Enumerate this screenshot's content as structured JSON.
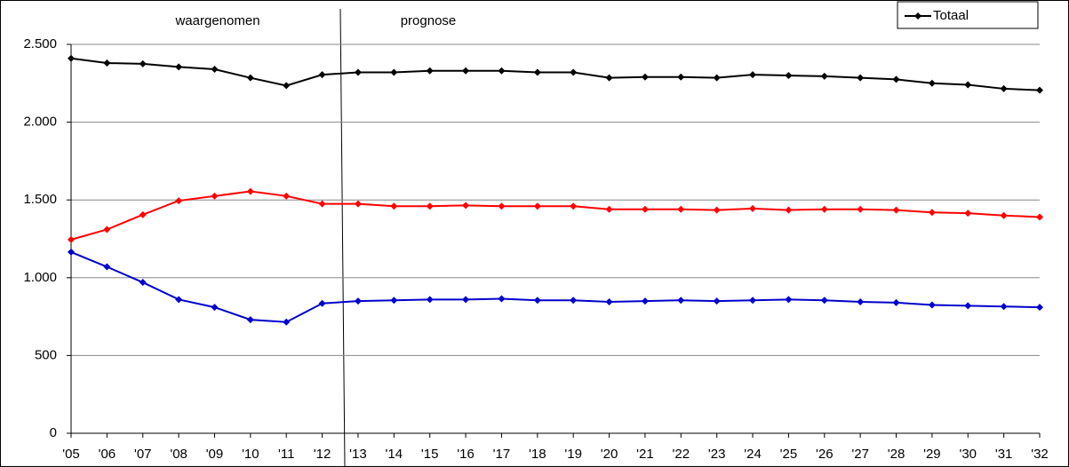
{
  "chart_data": {
    "type": "line",
    "annotations": [
      "waargenomen",
      "prognose"
    ],
    "categories": [
      "'05",
      "'06",
      "'07",
      "'08",
      "'09",
      "'10",
      "'11",
      "'12",
      "'13",
      "'14",
      "'15",
      "'16",
      "'17",
      "'18",
      "'19",
      "'20",
      "'21",
      "'22",
      "'23",
      "'24",
      "'25",
      "'26",
      "'27",
      "'28",
      "'29",
      "'30",
      "'31",
      "'32"
    ],
    "series": [
      {
        "name": "Totaal",
        "color": "#000000",
        "values": [
          2410,
          2380,
          2375,
          2355,
          2340,
          2285,
          2235,
          2305,
          2320,
          2320,
          2330,
          2330,
          2330,
          2320,
          2320,
          2285,
          2290,
          2290,
          2285,
          2305,
          2300,
          2295,
          2285,
          2275,
          2250,
          2240,
          2215,
          2205
        ]
      },
      {
        "color": "#ff0000",
        "values": [
          1245,
          1310,
          1405,
          1495,
          1525,
          1555,
          1525,
          1475,
          1475,
          1460,
          1460,
          1465,
          1460,
          1460,
          1460,
          1440,
          1440,
          1440,
          1435,
          1445,
          1435,
          1440,
          1440,
          1435,
          1420,
          1415,
          1400,
          1390
        ]
      },
      {
        "color": "#0000cc",
        "values": [
          1165,
          1070,
          970,
          860,
          810,
          730,
          715,
          835,
          850,
          855,
          860,
          860,
          865,
          855,
          855,
          845,
          850,
          855,
          850,
          855,
          860,
          855,
          845,
          840,
          825,
          820,
          815,
          810
        ]
      }
    ],
    "ylim": [
      0,
      2500
    ],
    "yticks": [
      0,
      500,
      {
        "value": 1000,
        "label": "1.000"
      },
      {
        "value": 1500,
        "label": "1.500"
      },
      {
        "value": 2000,
        "label": "2.000"
      },
      {
        "value": 2500,
        "label": "2.500"
      }
    ],
    "grid": true,
    "legend": "top-right"
  }
}
